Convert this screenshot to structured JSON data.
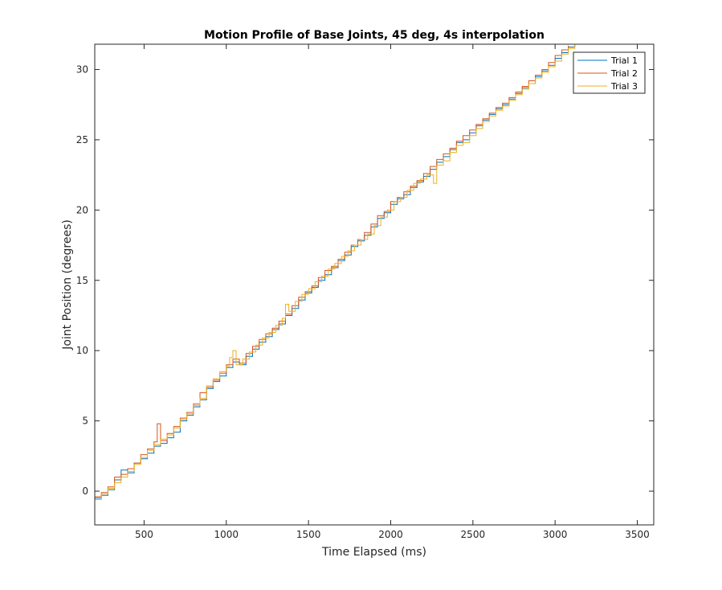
{
  "chart_data": {
    "type": "line",
    "title": "Motion Profile of Base Joints, 45 deg, 4s interpolation",
    "xlabel": "Time Elapsed (ms)",
    "ylabel": "Joint Position (degrees)",
    "xlim": [
      200,
      3600
    ],
    "ylim": [
      -2.4,
      31.8
    ],
    "xticks": [
      500,
      1000,
      1500,
      2000,
      2500,
      3000,
      3500
    ],
    "yticks": [
      0,
      5,
      10,
      15,
      20,
      25,
      30
    ],
    "grid": false,
    "legend_position": "top-right",
    "step_interpolation": true,
    "series": [
      {
        "name": "Trial 1",
        "color": "#0072BD",
        "points": [
          [
            200,
            -0.5
          ],
          [
            240,
            -0.3
          ],
          [
            280,
            0.1
          ],
          [
            320,
            0.8
          ],
          [
            360,
            1.5
          ],
          [
            400,
            1.3
          ],
          [
            440,
            2.0
          ],
          [
            480,
            2.3
          ],
          [
            520,
            2.7
          ],
          [
            560,
            3.2
          ],
          [
            600,
            3.4
          ],
          [
            640,
            3.8
          ],
          [
            680,
            4.2
          ],
          [
            720,
            5.0
          ],
          [
            760,
            5.4
          ],
          [
            800,
            6.0
          ],
          [
            840,
            6.5
          ],
          [
            880,
            7.3
          ],
          [
            920,
            7.8
          ],
          [
            960,
            8.2
          ],
          [
            1000,
            8.8
          ],
          [
            1040,
            9.2
          ],
          [
            1080,
            9.0
          ],
          [
            1120,
            9.6
          ],
          [
            1160,
            10.1
          ],
          [
            1200,
            10.6
          ],
          [
            1240,
            11.0
          ],
          [
            1280,
            11.5
          ],
          [
            1320,
            11.9
          ],
          [
            1360,
            12.5
          ],
          [
            1400,
            13.0
          ],
          [
            1440,
            13.6
          ],
          [
            1480,
            14.1
          ],
          [
            1520,
            14.5
          ],
          [
            1560,
            15.0
          ],
          [
            1600,
            15.4
          ],
          [
            1640,
            15.9
          ],
          [
            1680,
            16.4
          ],
          [
            1720,
            16.8
          ],
          [
            1760,
            17.4
          ],
          [
            1800,
            17.8
          ],
          [
            1840,
            18.2
          ],
          [
            1880,
            18.8
          ],
          [
            1920,
            19.4
          ],
          [
            1960,
            19.8
          ],
          [
            2000,
            20.4
          ],
          [
            2040,
            20.8
          ],
          [
            2080,
            21.1
          ],
          [
            2120,
            21.6
          ],
          [
            2160,
            22.0
          ],
          [
            2200,
            22.4
          ],
          [
            2240,
            22.9
          ],
          [
            2280,
            23.4
          ],
          [
            2320,
            23.8
          ],
          [
            2360,
            24.3
          ],
          [
            2400,
            24.8
          ],
          [
            2440,
            25.0
          ],
          [
            2480,
            25.5
          ],
          [
            2520,
            26.0
          ],
          [
            2560,
            26.4
          ],
          [
            2600,
            26.8
          ],
          [
            2640,
            27.2
          ],
          [
            2680,
            27.5
          ],
          [
            2720,
            27.9
          ],
          [
            2760,
            28.3
          ],
          [
            2800,
            28.7
          ],
          [
            2840,
            29.0
          ],
          [
            2880,
            29.5
          ],
          [
            2920,
            29.9
          ],
          [
            2960,
            30.3
          ],
          [
            3000,
            30.8
          ],
          [
            3040,
            31.2
          ],
          [
            3080,
            31.6
          ],
          [
            3120,
            31.8
          ]
        ]
      },
      {
        "name": "Trial 2",
        "color": "#D95319",
        "points": [
          [
            200,
            -0.4
          ],
          [
            240,
            -0.1
          ],
          [
            280,
            0.3
          ],
          [
            320,
            1.0
          ],
          [
            360,
            1.2
          ],
          [
            400,
            1.6
          ],
          [
            440,
            2.0
          ],
          [
            480,
            2.6
          ],
          [
            520,
            3.0
          ],
          [
            560,
            3.5
          ],
          [
            580,
            4.8
          ],
          [
            600,
            3.6
          ],
          [
            640,
            4.1
          ],
          [
            680,
            4.6
          ],
          [
            720,
            5.2
          ],
          [
            760,
            5.6
          ],
          [
            800,
            6.2
          ],
          [
            840,
            7.0
          ],
          [
            880,
            7.4
          ],
          [
            920,
            7.9
          ],
          [
            960,
            8.4
          ],
          [
            1000,
            9.0
          ],
          [
            1040,
            9.4
          ],
          [
            1080,
            9.1
          ],
          [
            1120,
            9.8
          ],
          [
            1160,
            10.3
          ],
          [
            1200,
            10.8
          ],
          [
            1240,
            11.2
          ],
          [
            1280,
            11.6
          ],
          [
            1320,
            12.1
          ],
          [
            1360,
            12.6
          ],
          [
            1400,
            13.2
          ],
          [
            1440,
            13.8
          ],
          [
            1480,
            14.2
          ],
          [
            1520,
            14.6
          ],
          [
            1560,
            15.2
          ],
          [
            1600,
            15.7
          ],
          [
            1640,
            16.0
          ],
          [
            1680,
            16.5
          ],
          [
            1720,
            17.0
          ],
          [
            1760,
            17.5
          ],
          [
            1800,
            17.9
          ],
          [
            1840,
            18.4
          ],
          [
            1880,
            19.0
          ],
          [
            1920,
            19.6
          ],
          [
            1960,
            19.9
          ],
          [
            2000,
            20.6
          ],
          [
            2040,
            20.9
          ],
          [
            2080,
            21.3
          ],
          [
            2120,
            21.7
          ],
          [
            2160,
            22.1
          ],
          [
            2200,
            22.6
          ],
          [
            2240,
            23.1
          ],
          [
            2280,
            23.6
          ],
          [
            2320,
            24.0
          ],
          [
            2360,
            24.4
          ],
          [
            2400,
            24.9
          ],
          [
            2440,
            25.3
          ],
          [
            2480,
            25.7
          ],
          [
            2520,
            26.1
          ],
          [
            2560,
            26.5
          ],
          [
            2600,
            26.9
          ],
          [
            2640,
            27.3
          ],
          [
            2680,
            27.6
          ],
          [
            2720,
            28.0
          ],
          [
            2760,
            28.4
          ],
          [
            2800,
            28.8
          ],
          [
            2840,
            29.2
          ],
          [
            2880,
            29.6
          ],
          [
            2920,
            30.0
          ],
          [
            2960,
            30.5
          ],
          [
            3000,
            31.0
          ],
          [
            3040,
            31.4
          ],
          [
            3080,
            31.7
          ]
        ]
      },
      {
        "name": "Trial 3",
        "color": "#EDB120",
        "points": [
          [
            200,
            -0.6
          ],
          [
            240,
            -0.2
          ],
          [
            280,
            0.2
          ],
          [
            320,
            0.6
          ],
          [
            360,
            1.0
          ],
          [
            400,
            1.4
          ],
          [
            440,
            1.9
          ],
          [
            480,
            2.4
          ],
          [
            520,
            2.9
          ],
          [
            560,
            3.3
          ],
          [
            600,
            3.7
          ],
          [
            640,
            4.0
          ],
          [
            680,
            4.5
          ],
          [
            720,
            5.1
          ],
          [
            760,
            5.5
          ],
          [
            800,
            6.1
          ],
          [
            840,
            6.6
          ],
          [
            880,
            7.5
          ],
          [
            920,
            8.0
          ],
          [
            960,
            8.5
          ],
          [
            1000,
            8.9
          ],
          [
            1020,
            9.5
          ],
          [
            1040,
            10.0
          ],
          [
            1060,
            9.0
          ],
          [
            1100,
            9.4
          ],
          [
            1140,
            9.9
          ],
          [
            1180,
            10.4
          ],
          [
            1220,
            10.9
          ],
          [
            1260,
            11.3
          ],
          [
            1300,
            11.8
          ],
          [
            1340,
            12.3
          ],
          [
            1360,
            13.3
          ],
          [
            1380,
            12.8
          ],
          [
            1420,
            13.5
          ],
          [
            1460,
            14.0
          ],
          [
            1500,
            14.4
          ],
          [
            1540,
            14.9
          ],
          [
            1580,
            15.3
          ],
          [
            1620,
            15.8
          ],
          [
            1660,
            16.2
          ],
          [
            1700,
            16.7
          ],
          [
            1740,
            17.1
          ],
          [
            1780,
            17.5
          ],
          [
            1820,
            17.9
          ],
          [
            1860,
            18.3
          ],
          [
            1900,
            18.9
          ],
          [
            1940,
            19.5
          ],
          [
            1980,
            20.0
          ],
          [
            2020,
            20.6
          ],
          [
            2060,
            20.9
          ],
          [
            2100,
            21.4
          ],
          [
            2140,
            21.9
          ],
          [
            2180,
            22.2
          ],
          [
            2220,
            22.5
          ],
          [
            2260,
            21.9
          ],
          [
            2280,
            23.2
          ],
          [
            2320,
            23.5
          ],
          [
            2360,
            24.1
          ],
          [
            2400,
            24.6
          ],
          [
            2440,
            24.8
          ],
          [
            2480,
            25.3
          ],
          [
            2520,
            25.8
          ],
          [
            2560,
            26.3
          ],
          [
            2600,
            26.7
          ],
          [
            2640,
            27.1
          ],
          [
            2680,
            27.4
          ],
          [
            2720,
            27.8
          ],
          [
            2760,
            28.2
          ],
          [
            2800,
            28.6
          ],
          [
            2840,
            29.0
          ],
          [
            2880,
            29.4
          ],
          [
            2920,
            29.8
          ],
          [
            2960,
            30.2
          ],
          [
            3000,
            30.6
          ],
          [
            3040,
            31.1
          ],
          [
            3080,
            31.5
          ],
          [
            3120,
            31.8
          ]
        ]
      }
    ]
  }
}
